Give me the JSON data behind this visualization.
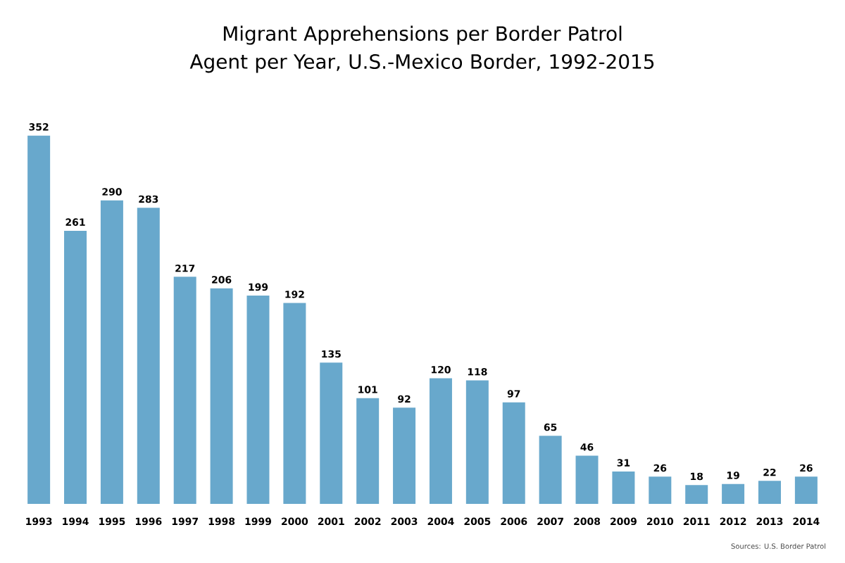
{
  "chart_data": {
    "type": "bar",
    "title": "Migrant Apprehensions per Border Patrol Agent per Year, U.S.-Mexico Border, 1992-2015",
    "categories": [
      "1993",
      "1994",
      "1995",
      "1996",
      "1997",
      "1998",
      "1999",
      "2000",
      "2001",
      "2002",
      "2003",
      "2004",
      "2005",
      "2006",
      "2007",
      "2008",
      "2009",
      "2010",
      "2011",
      "2012",
      "2013",
      "2014"
    ],
    "values": [
      352,
      261,
      290,
      283,
      217,
      206,
      199,
      192,
      135,
      101,
      92,
      120,
      118,
      97,
      65,
      46,
      31,
      26,
      18,
      19,
      22,
      26
    ],
    "color": "#68a8cc",
    "data_labels": true,
    "annotations": [
      "Sources: U.S. Border Patrol"
    ]
  }
}
